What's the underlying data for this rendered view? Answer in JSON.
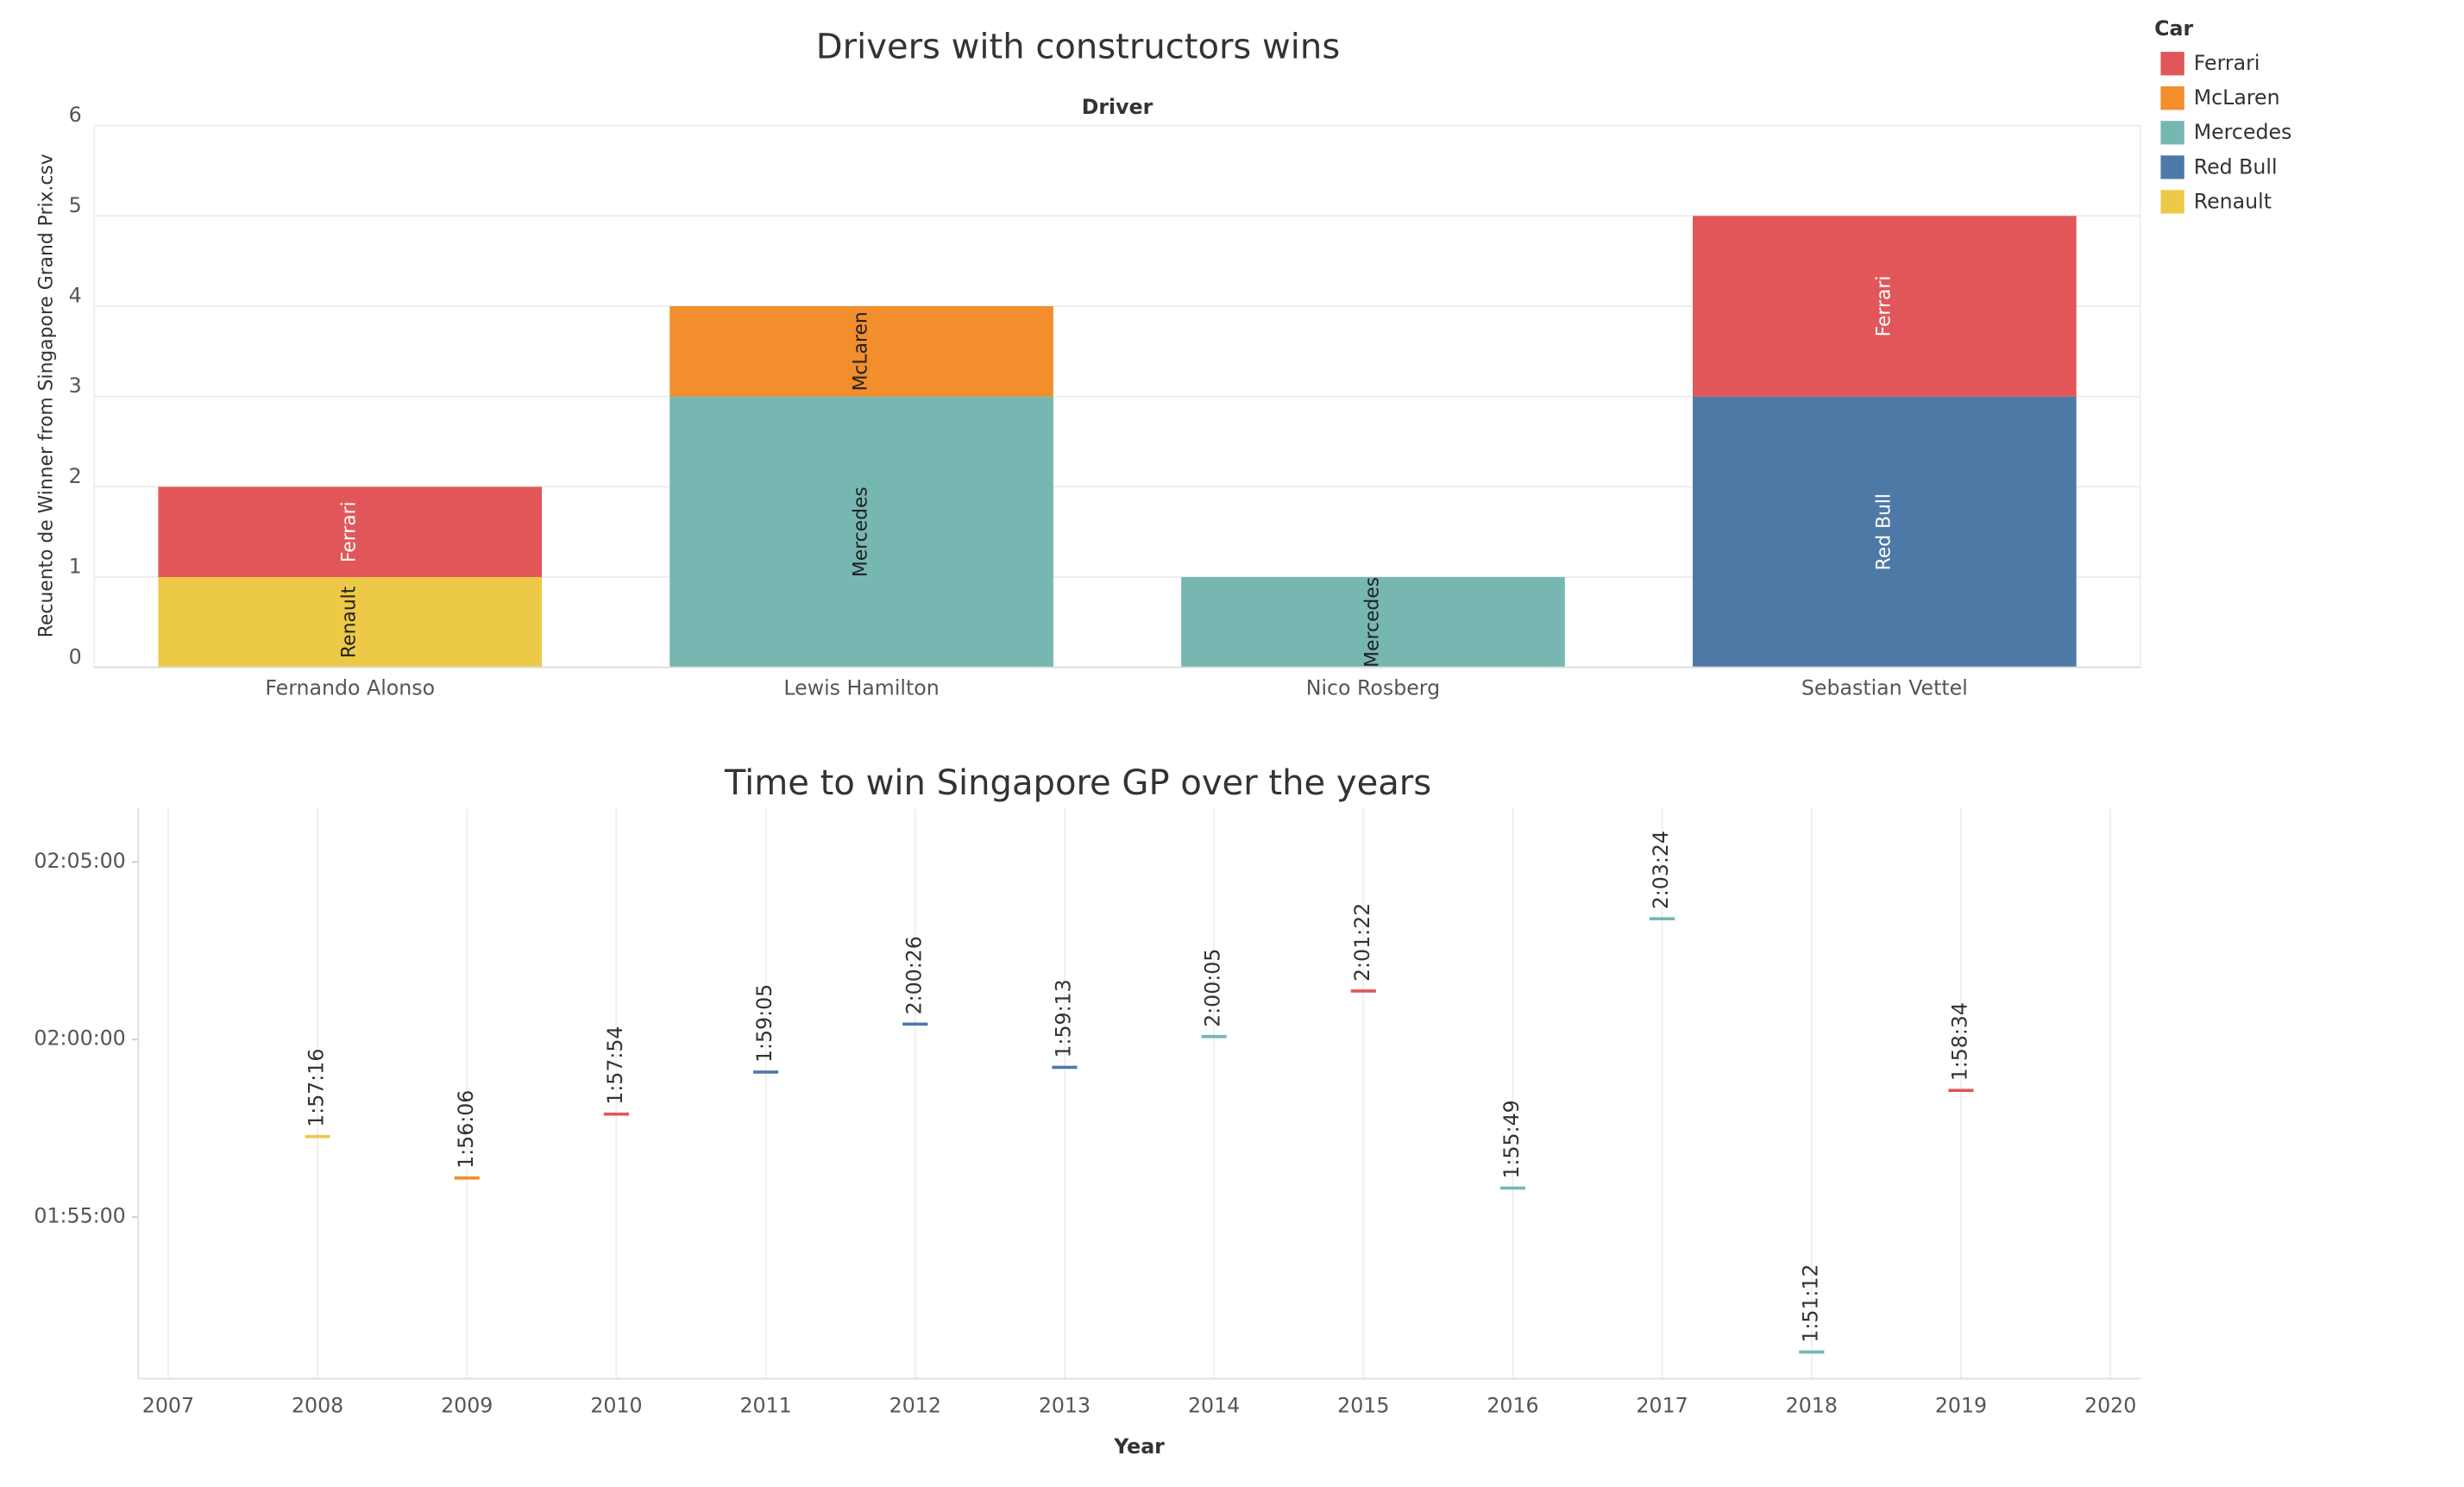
{
  "chart_data": [
    {
      "type": "bar",
      "stacked": true,
      "title": "Drivers with constructors wins",
      "x_label": "Driver",
      "y_label": "Recuento de Winner from Singapore Grand Prix.csv",
      "legend_title": "Car",
      "legend": "top-right",
      "categories": [
        "Fernando Alonso",
        "Lewis Hamilton",
        "Nico Rosberg",
        "Sebastian Vettel"
      ],
      "series": [
        {
          "name": "Ferrari",
          "color": "#e15759",
          "values": [
            1,
            null,
            null,
            2
          ]
        },
        {
          "name": "McLaren",
          "color": "#f28e2b",
          "values": [
            null,
            1,
            null,
            null
          ]
        },
        {
          "name": "Mercedes",
          "color": "#76b7b2",
          "values": [
            null,
            3,
            1,
            null
          ]
        },
        {
          "name": "Red Bull",
          "color": "#4e79a7",
          "values": [
            null,
            null,
            null,
            3
          ]
        },
        {
          "name": "Renault",
          "color": "#edc948",
          "values": [
            1,
            null,
            null,
            null
          ]
        }
      ],
      "ylim": [
        0,
        6
      ],
      "yticks": [
        0,
        1,
        2,
        3,
        4,
        5,
        6
      ],
      "grid": true
    },
    {
      "type": "scatter",
      "title": "Time to win Singapore GP over the years",
      "x_label": "Year",
      "x": [
        2008,
        2009,
        2010,
        2011,
        2012,
        2013,
        2014,
        2015,
        2016,
        2017,
        2018,
        2019
      ],
      "values": [
        7036,
        6966,
        7074,
        7145,
        7226,
        7153,
        7205,
        7282,
        6949,
        7404,
        6672,
        7114
      ],
      "value_labels": [
        "1:57:16",
        "1:56:06",
        "1:57:54",
        "1:59:05",
        "2:00:26",
        "1:59:13",
        "2:00:05",
        "2:01:22",
        "1:55:49",
        "2:03:24",
        "1:51:12",
        "1:58:34"
      ],
      "colors": [
        "#edc948",
        "#f28e2b",
        "#e15759",
        "#4e79a7",
        "#4e79a7",
        "#4e79a7",
        "#76b7b2",
        "#e15759",
        "#76b7b2",
        "#76b7b2",
        "#76b7b2",
        "#e15759"
      ],
      "xlim": [
        2006.8,
        2020.2
      ],
      "xticks": [
        2007,
        2008,
        2009,
        2010,
        2011,
        2012,
        2013,
        2014,
        2015,
        2016,
        2017,
        2018,
        2019,
        2020
      ],
      "ylim": [
        6627,
        7590
      ],
      "yticks": [
        {
          "value": 6900,
          "label": "01:55:00"
        },
        {
          "value": 7200,
          "label": "02:00:00"
        },
        {
          "value": 7500,
          "label": "02:05:00"
        }
      ],
      "grid": true
    }
  ]
}
